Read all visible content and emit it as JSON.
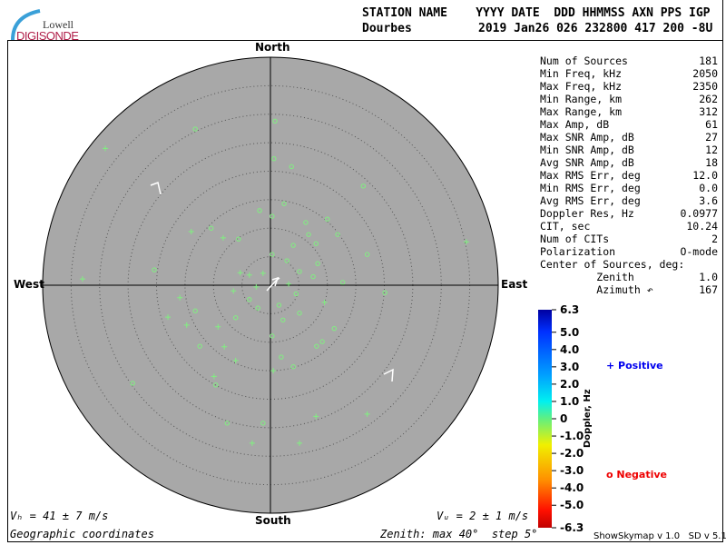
{
  "header": {
    "labels": "STATION NAME    YYYY DATE  DDD HHMMSS AXN PPS IGP",
    "station": "Dourbes",
    "values": "2019 Jan26 026 232800 417 200 -8U"
  },
  "logo": {
    "line1": "Lowell",
    "line2": "DIGISONDE"
  },
  "stats": [
    {
      "label": "Num of Sources",
      "value": "181"
    },
    {
      "label": "Min Freq, kHz",
      "value": "2050"
    },
    {
      "label": "Max Freq, kHz",
      "value": "2350"
    },
    {
      "label": "Min Range, km",
      "value": "262"
    },
    {
      "label": "Max Range, km",
      "value": "312"
    },
    {
      "label": "Max Amp, dB",
      "value": "61"
    },
    {
      "label": "Max SNR Amp, dB",
      "value": "27"
    },
    {
      "label": "Min SNR Amp, dB",
      "value": "12"
    },
    {
      "label": "Avg SNR Amp, dB",
      "value": "18"
    },
    {
      "label": "Max RMS Err, deg",
      "value": "12.0"
    },
    {
      "label": "Min RMS Err, deg",
      "value": "0.0"
    },
    {
      "label": "Avg RMS Err, deg",
      "value": "3.6"
    },
    {
      "label": "Doppler Res, Hz",
      "value": "0.0977"
    },
    {
      "label": "CIT, sec",
      "value": "10.24"
    },
    {
      "label": "Num of CITs",
      "value": "2"
    },
    {
      "label": "Polarization",
      "value": "O-mode"
    },
    {
      "label": "Center of Sources, deg:",
      "value": ""
    },
    {
      "label": "         Zenith",
      "value": "1.0"
    },
    {
      "label": "         Azimuth ↶",
      "value": "167"
    }
  ],
  "directions": {
    "north": "North",
    "south": "South",
    "east": "East",
    "west": "West"
  },
  "bottom": {
    "vh": "Vₕ = 41 ± 7 m/s",
    "vz": "Vᵤ = 2 ± 1 m/s",
    "coords": "Geographic coordinates",
    "zenith": "Zenith: max 40°  step 5°"
  },
  "legend": {
    "positive": "+ Positive",
    "negative": "o Negative",
    "positive_color": "#0000ee",
    "negative_color": "#ee0000"
  },
  "footer": {
    "version": "ShowSkymap v 1.0   SD v 5.1"
  },
  "chart_data": {
    "type": "scatter",
    "projection": "polar sky map, zenith angle radial, azimuth geographic",
    "zenith_max_deg": 40,
    "zenith_step_deg": 5,
    "background_color": "#a8a8a8",
    "point_color": "#80f080",
    "colorbar": {
      "label": "Doppler, Hz",
      "range": [
        -6.3,
        6.3
      ],
      "ticks": [
        "6.3",
        "5.0",
        "4.0",
        "3.0",
        "2.0",
        "1.0",
        "0",
        "-1.0",
        "-2.0",
        "-3.0",
        "-4.0",
        "-5.0",
        "-6.3"
      ]
    },
    "points_east_north_deg": [
      {
        "e": -29,
        "n": 24,
        "s": "+"
      },
      {
        "e": -13.2,
        "n": 27.4,
        "s": "o"
      },
      {
        "e": 0.8,
        "n": 28.8,
        "s": "o"
      },
      {
        "e": 0.6,
        "n": 22.2,
        "s": "o"
      },
      {
        "e": 3.7,
        "n": 20.8,
        "s": "o"
      },
      {
        "e": 16.3,
        "n": 17.4,
        "s": "o"
      },
      {
        "e": 34.4,
        "n": 7.6,
        "s": "+"
      },
      {
        "e": 20.1,
        "n": -1.3,
        "s": "o"
      },
      {
        "e": 17,
        "n": -22.6,
        "s": "+"
      },
      {
        "e": 8,
        "n": -23,
        "s": "+"
      },
      {
        "e": 5.1,
        "n": -27.7,
        "s": "+"
      },
      {
        "e": -3.2,
        "n": -27.7,
        "s": "+"
      },
      {
        "e": -1.3,
        "n": -24.2,
        "s": "o"
      },
      {
        "e": -7.6,
        "n": -24.2,
        "s": "o"
      },
      {
        "e": -24.2,
        "n": -17.2,
        "s": "o"
      },
      {
        "e": -9.6,
        "n": -17.5,
        "s": "o"
      },
      {
        "e": -9.9,
        "n": -16,
        "s": "+"
      },
      {
        "e": -6.1,
        "n": -13.2,
        "s": "+"
      },
      {
        "e": 0.5,
        "n": -15,
        "s": "+"
      },
      {
        "e": 4,
        "n": -14.3,
        "s": "o"
      },
      {
        "e": 1.9,
        "n": -12.6,
        "s": "o"
      },
      {
        "e": 8.1,
        "n": -10.7,
        "s": "o"
      },
      {
        "e": 11.2,
        "n": -7.6,
        "s": "o"
      },
      {
        "e": 9.1,
        "n": -9.9,
        "s": "o"
      },
      {
        "e": -33,
        "n": 1.1,
        "s": "+"
      },
      {
        "e": -20.4,
        "n": 2.7,
        "s": "o"
      },
      {
        "e": -15.9,
        "n": -2.2,
        "s": "+"
      },
      {
        "e": -18,
        "n": -5.6,
        "s": "+"
      },
      {
        "e": -14.7,
        "n": -7,
        "s": "+"
      },
      {
        "e": -13.2,
        "n": -4.5,
        "s": "o"
      },
      {
        "e": -8.1,
        "n": -10.8,
        "s": "+"
      },
      {
        "e": -12.4,
        "n": -10.7,
        "s": "o"
      },
      {
        "e": -10.4,
        "n": 10,
        "s": "o"
      },
      {
        "e": -13.9,
        "n": 9.4,
        "s": "+"
      },
      {
        "e": -5.6,
        "n": 8.1,
        "s": "o"
      },
      {
        "e": -8.3,
        "n": 8.3,
        "s": "+"
      },
      {
        "e": 0.3,
        "n": 12.1,
        "s": "o"
      },
      {
        "e": 2.4,
        "n": 14.3,
        "s": "o"
      },
      {
        "e": -1.9,
        "n": 13.1,
        "s": "o"
      },
      {
        "e": 6.2,
        "n": 11,
        "s": "o"
      },
      {
        "e": 10,
        "n": 11.6,
        "s": "o"
      },
      {
        "e": 11.8,
        "n": 8.9,
        "s": "o"
      },
      {
        "e": 17,
        "n": 5.4,
        "s": "o"
      },
      {
        "e": 12.7,
        "n": 0.5,
        "s": "o"
      },
      {
        "e": 8.3,
        "n": 3.8,
        "s": "o"
      },
      {
        "e": 5.1,
        "n": 2.4,
        "s": "o"
      },
      {
        "e": 2.9,
        "n": 4.3,
        "s": "o"
      },
      {
        "e": 3.2,
        "n": 0.2,
        "s": "+"
      },
      {
        "e": -1.3,
        "n": 2.1,
        "s": "+"
      },
      {
        "e": -3.7,
        "n": 1.8,
        "s": "+"
      },
      {
        "e": -3.7,
        "n": -2.5,
        "s": "o"
      },
      {
        "e": 2.2,
        "n": -6.1,
        "s": "o"
      },
      {
        "e": 5.1,
        "n": -4.9,
        "s": "o"
      },
      {
        "e": -2.2,
        "n": -4,
        "s": "o"
      },
      {
        "e": -6.1,
        "n": -5.7,
        "s": "o"
      },
      {
        "e": -9.2,
        "n": -7.3,
        "s": "+"
      },
      {
        "e": 0.3,
        "n": -8.9,
        "s": "o"
      },
      {
        "e": -5.3,
        "n": 2.2,
        "s": "+"
      },
      {
        "e": 0.3,
        "n": 5.4,
        "s": "o"
      },
      {
        "e": 4,
        "n": 7,
        "s": "o"
      },
      {
        "e": 8,
        "n": 7.3,
        "s": "o"
      },
      {
        "e": 6.7,
        "n": 8.9,
        "s": "o"
      },
      {
        "e": 7.5,
        "n": 1.5,
        "s": "o"
      },
      {
        "e": -2.5,
        "n": -0.3,
        "s": "+"
      },
      {
        "e": 4.5,
        "n": -1.5,
        "s": "o"
      },
      {
        "e": 9.5,
        "n": -3,
        "s": "+"
      },
      {
        "e": -6.5,
        "n": -1,
        "s": "+"
      },
      {
        "e": 1.5,
        "n": -3.5,
        "s": "o"
      }
    ]
  }
}
